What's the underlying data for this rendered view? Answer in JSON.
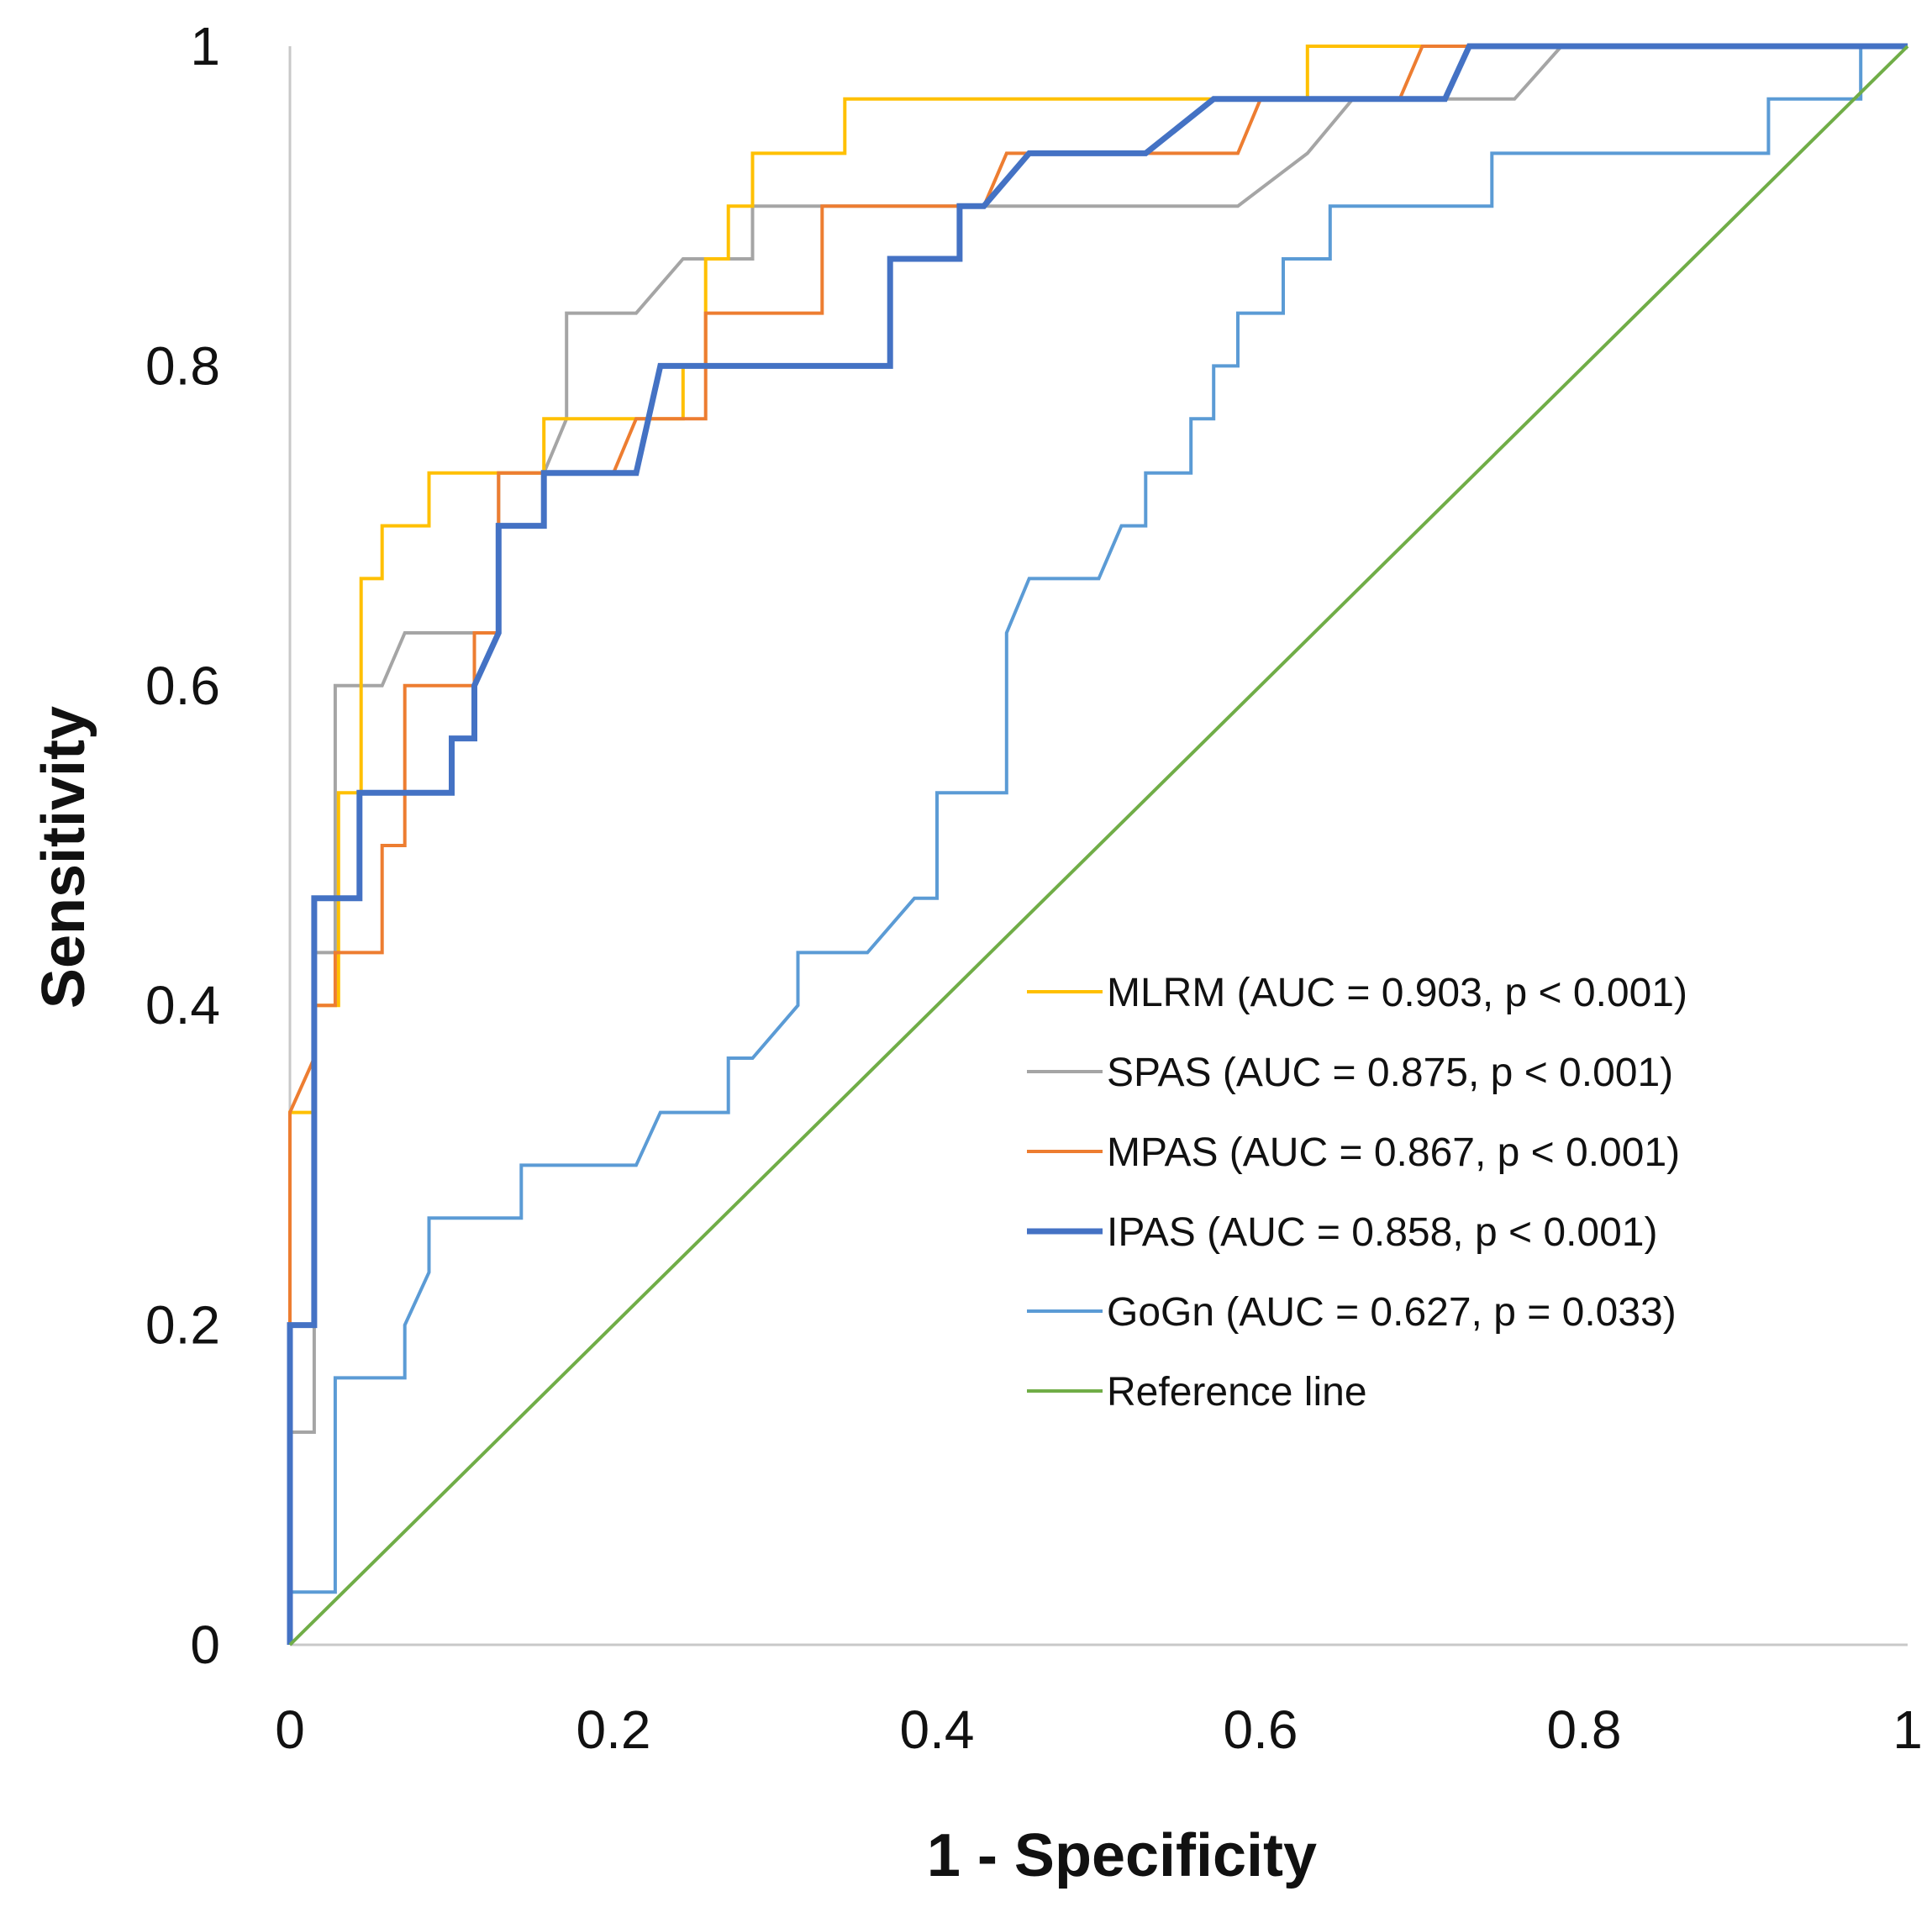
{
  "chart_data": {
    "type": "line",
    "title": "",
    "xlabel": "1 - Specificity",
    "ylabel": "Sensitivity",
    "xlim": [
      0,
      1
    ],
    "ylim": [
      0,
      1
    ],
    "x_ticks": [
      "0",
      "0.2",
      "0.4",
      "0.6",
      "0.8",
      "1"
    ],
    "y_ticks": [
      "0",
      "0.2",
      "0.4",
      "0.6",
      "0.8",
      "1"
    ],
    "grid": false,
    "legend_position": "center-right",
    "series": [
      {
        "name": "MLRM (AUC = 0.903, p < 0.001)",
        "color": "#FFC000",
        "points": [
          [
            0,
            0
          ],
          [
            0,
            0.333
          ],
          [
            0.015,
            0.333
          ],
          [
            0.015,
            0.4
          ],
          [
            0.03,
            0.4
          ],
          [
            0.03,
            0.533
          ],
          [
            0.044,
            0.533
          ],
          [
            0.044,
            0.667
          ],
          [
            0.057,
            0.667
          ],
          [
            0.057,
            0.7
          ],
          [
            0.086,
            0.7
          ],
          [
            0.086,
            0.733
          ],
          [
            0.157,
            0.733
          ],
          [
            0.157,
            0.767
          ],
          [
            0.243,
            0.767
          ],
          [
            0.243,
            0.8
          ],
          [
            0.257,
            0.8
          ],
          [
            0.257,
            0.867
          ],
          [
            0.271,
            0.867
          ],
          [
            0.271,
            0.9
          ],
          [
            0.286,
            0.9
          ],
          [
            0.286,
            0.933
          ],
          [
            0.343,
            0.933
          ],
          [
            0.343,
            0.967
          ],
          [
            0.629,
            0.967
          ],
          [
            0.629,
            1
          ],
          [
            1,
            1
          ]
        ]
      },
      {
        "name": "SPAS (AUC = 0.875, p < 0.001)",
        "color": "#A5A5A5",
        "points": [
          [
            0,
            0
          ],
          [
            0,
            0.133
          ],
          [
            0.015,
            0.133
          ],
          [
            0.015,
            0.433
          ],
          [
            0.028,
            0.433
          ],
          [
            0.028,
            0.6
          ],
          [
            0.057,
            0.6
          ],
          [
            0.071,
            0.633
          ],
          [
            0.129,
            0.633
          ],
          [
            0.129,
            0.733
          ],
          [
            0.157,
            0.733
          ],
          [
            0.171,
            0.767
          ],
          [
            0.171,
            0.833
          ],
          [
            0.214,
            0.833
          ],
          [
            0.243,
            0.867
          ],
          [
            0.286,
            0.867
          ],
          [
            0.286,
            0.9
          ],
          [
            0.586,
            0.9
          ],
          [
            0.629,
            0.933
          ],
          [
            0.657,
            0.967
          ],
          [
            0.757,
            0.967
          ],
          [
            0.786,
            1
          ],
          [
            1,
            1
          ]
        ]
      },
      {
        "name": "MPAS (AUC = 0.867, p < 0.001)",
        "color": "#ED7D31",
        "points": [
          [
            0,
            0
          ],
          [
            0,
            0.2
          ],
          [
            0,
            0.333
          ],
          [
            0.015,
            0.367
          ],
          [
            0.015,
            0.4
          ],
          [
            0.028,
            0.4
          ],
          [
            0.028,
            0.433
          ],
          [
            0.057,
            0.433
          ],
          [
            0.057,
            0.5
          ],
          [
            0.071,
            0.5
          ],
          [
            0.071,
            0.567
          ],
          [
            0.071,
            0.6
          ],
          [
            0.114,
            0.6
          ],
          [
            0.114,
            0.633
          ],
          [
            0.129,
            0.633
          ],
          [
            0.129,
            0.733
          ],
          [
            0.2,
            0.733
          ],
          [
            0.214,
            0.767
          ],
          [
            0.257,
            0.767
          ],
          [
            0.257,
            0.833
          ],
          [
            0.329,
            0.833
          ],
          [
            0.329,
            0.9
          ],
          [
            0.429,
            0.9
          ],
          [
            0.443,
            0.933
          ],
          [
            0.586,
            0.933
          ],
          [
            0.6,
            0.967
          ],
          [
            0.686,
            0.967
          ],
          [
            0.7,
            1
          ],
          [
            1,
            1
          ]
        ]
      },
      {
        "name": "IPAS (AUC = 0.858, p < 0.001)",
        "color": "#4472C4",
        "width": 7,
        "points": [
          [
            0,
            0
          ],
          [
            0,
            0.2
          ],
          [
            0.015,
            0.2
          ],
          [
            0.015,
            0.467
          ],
          [
            0.043,
            0.467
          ],
          [
            0.043,
            0.533
          ],
          [
            0.1,
            0.533
          ],
          [
            0.1,
            0.567
          ],
          [
            0.114,
            0.567
          ],
          [
            0.114,
            0.6
          ],
          [
            0.129,
            0.633
          ],
          [
            0.129,
            0.7
          ],
          [
            0.157,
            0.7
          ],
          [
            0.157,
            0.733
          ],
          [
            0.214,
            0.733
          ],
          [
            0.229,
            0.8
          ],
          [
            0.371,
            0.8
          ],
          [
            0.371,
            0.867
          ],
          [
            0.414,
            0.867
          ],
          [
            0.414,
            0.9
          ],
          [
            0.429,
            0.9
          ],
          [
            0.457,
            0.933
          ],
          [
            0.529,
            0.933
          ],
          [
            0.571,
            0.967
          ],
          [
            0.714,
            0.967
          ],
          [
            0.729,
            1
          ],
          [
            1,
            1
          ]
        ]
      },
      {
        "name": "GoGn (AUC = 0.627, p = 0.033)",
        "color": "#5B9BD5",
        "points": [
          [
            0,
            0
          ],
          [
            0,
            0.033
          ],
          [
            0.028,
            0.033
          ],
          [
            0.028,
            0.167
          ],
          [
            0.071,
            0.167
          ],
          [
            0.071,
            0.2
          ],
          [
            0.086,
            0.233
          ],
          [
            0.086,
            0.267
          ],
          [
            0.143,
            0.267
          ],
          [
            0.143,
            0.3
          ],
          [
            0.214,
            0.3
          ],
          [
            0.229,
            0.333
          ],
          [
            0.271,
            0.333
          ],
          [
            0.271,
            0.367
          ],
          [
            0.286,
            0.367
          ],
          [
            0.314,
            0.4
          ],
          [
            0.314,
            0.433
          ],
          [
            0.357,
            0.433
          ],
          [
            0.386,
            0.467
          ],
          [
            0.4,
            0.467
          ],
          [
            0.4,
            0.533
          ],
          [
            0.443,
            0.533
          ],
          [
            0.443,
            0.633
          ],
          [
            0.457,
            0.667
          ],
          [
            0.5,
            0.667
          ],
          [
            0.514,
            0.7
          ],
          [
            0.529,
            0.7
          ],
          [
            0.529,
            0.733
          ],
          [
            0.557,
            0.733
          ],
          [
            0.557,
            0.767
          ],
          [
            0.571,
            0.767
          ],
          [
            0.571,
            0.8
          ],
          [
            0.586,
            0.8
          ],
          [
            0.586,
            0.833
          ],
          [
            0.614,
            0.833
          ],
          [
            0.614,
            0.867
          ],
          [
            0.643,
            0.867
          ],
          [
            0.643,
            0.9
          ],
          [
            0.743,
            0.9
          ],
          [
            0.743,
            0.933
          ],
          [
            0.914,
            0.933
          ],
          [
            0.914,
            0.967
          ],
          [
            0.971,
            0.967
          ],
          [
            0.971,
            1
          ],
          [
            1,
            1
          ]
        ]
      },
      {
        "name": "Reference line",
        "color": "#70AD47",
        "points": [
          [
            0,
            0
          ],
          [
            1,
            1
          ]
        ]
      }
    ]
  }
}
